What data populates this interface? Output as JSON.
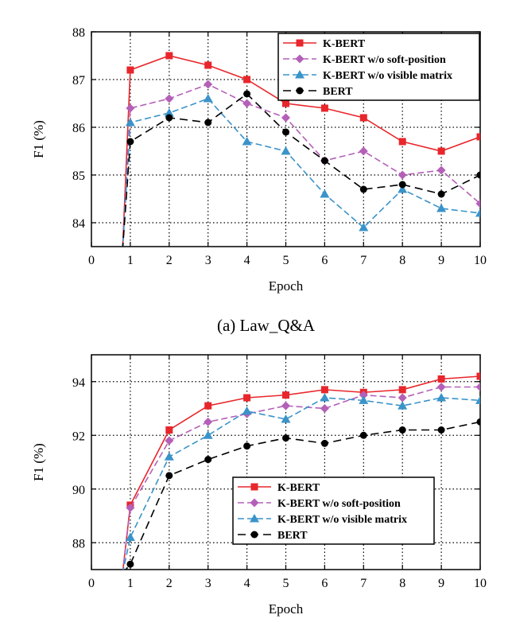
{
  "chart_data": [
    {
      "type": "line",
      "caption": "(a) Law_Q&A",
      "xlabel": "Epoch",
      "ylabel": "F1 (%)",
      "xlim": [
        0,
        10
      ],
      "ylim": [
        83.5,
        88
      ],
      "xticks": [
        "0",
        "1",
        "2",
        "3",
        "4",
        "5",
        "6",
        "7",
        "8",
        "9",
        "10"
      ],
      "yticks": [
        "84",
        "85",
        "86",
        "87",
        "88"
      ],
      "grid": true,
      "legend_position": "top-right",
      "x": [
        1,
        2,
        3,
        4,
        5,
        6,
        7,
        8,
        9,
        10
      ],
      "start_x": 0.8,
      "series": [
        {
          "name": "K-BERT",
          "color": "#e8262b",
          "marker": "square",
          "dash": "solid",
          "values": [
            87.2,
            87.5,
            87.3,
            87.0,
            86.5,
            86.4,
            86.2,
            85.7,
            85.5,
            85.8
          ]
        },
        {
          "name": "K-BERT w/o soft-position",
          "color": "#b460b8",
          "marker": "diamond",
          "dash": "dashed",
          "values": [
            86.4,
            86.6,
            86.9,
            86.5,
            86.2,
            85.3,
            85.5,
            85.0,
            85.1,
            84.4
          ]
        },
        {
          "name": "K-BERT w/o visible matrix",
          "color": "#3a93c9",
          "marker": "triangle",
          "dash": "dashed",
          "values": [
            86.1,
            86.3,
            86.6,
            85.7,
            85.5,
            84.6,
            83.9,
            84.7,
            84.3,
            84.2
          ]
        },
        {
          "name": "BERT",
          "color": "#000000",
          "marker": "circle",
          "dash": "longdash",
          "values": [
            85.7,
            86.2,
            86.1,
            86.7,
            85.9,
            85.3,
            84.7,
            84.8,
            84.6,
            85.0
          ]
        }
      ]
    },
    {
      "type": "line",
      "caption": "",
      "xlabel": "Epoch",
      "ylabel": "F1 (%)",
      "xlim": [
        0,
        10
      ],
      "ylim": [
        87,
        95
      ],
      "xticks": [
        "0",
        "1",
        "2",
        "3",
        "4",
        "5",
        "6",
        "7",
        "8",
        "9",
        "10"
      ],
      "yticks": [
        "88",
        "90",
        "92",
        "94"
      ],
      "grid": true,
      "legend_position": "bottom-right",
      "x": [
        1,
        2,
        3,
        4,
        5,
        6,
        7,
        8,
        9,
        10
      ],
      "start_x": 0.8,
      "series": [
        {
          "name": "K-BERT",
          "color": "#e8262b",
          "marker": "square",
          "dash": "solid",
          "values": [
            89.4,
            92.2,
            93.1,
            93.4,
            93.5,
            93.7,
            93.6,
            93.7,
            94.1,
            94.2
          ]
        },
        {
          "name": "K-BERT w/o soft-position",
          "color": "#b460b8",
          "marker": "diamond",
          "dash": "dashed",
          "values": [
            89.3,
            91.8,
            92.5,
            92.8,
            93.1,
            93.0,
            93.5,
            93.4,
            93.8,
            93.8
          ]
        },
        {
          "name": "K-BERT w/o visible matrix",
          "color": "#3a93c9",
          "marker": "triangle",
          "dash": "dashed",
          "values": [
            88.2,
            91.2,
            92.0,
            92.9,
            92.6,
            93.4,
            93.3,
            93.1,
            93.4,
            93.3
          ]
        },
        {
          "name": "BERT",
          "color": "#000000",
          "marker": "circle",
          "dash": "longdash",
          "values": [
            87.2,
            90.5,
            91.1,
            91.6,
            91.9,
            91.7,
            92.0,
            92.2,
            92.2,
            92.5
          ]
        }
      ]
    }
  ]
}
